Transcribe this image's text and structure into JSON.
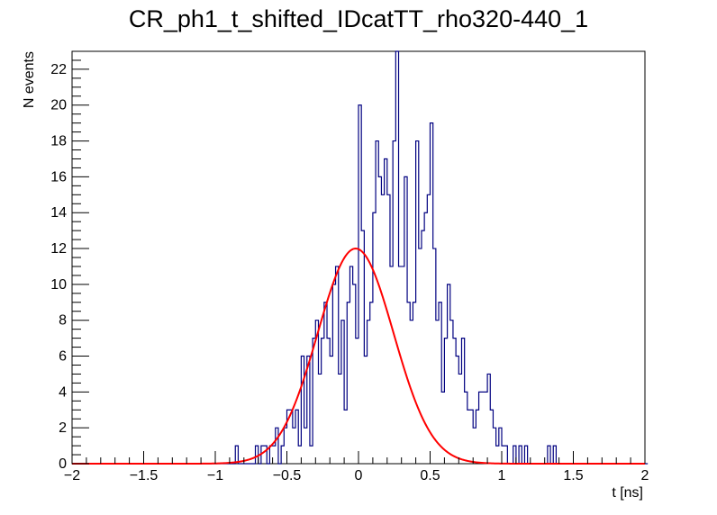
{
  "chart_data": {
    "type": "histogram",
    "title": "CR_ph1_t_shifted_IDcatTT_rho320-440_1",
    "xlabel": "t [ns]",
    "ylabel": "N events",
    "xlim": [
      -2,
      2
    ],
    "ylim": [
      0,
      23
    ],
    "x_ticks": [
      -2,
      -1.5,
      -1,
      -0.5,
      0,
      0.5,
      1,
      1.5,
      2
    ],
    "x_tick_labels": [
      "−2",
      "−1.5",
      "−1",
      "−0.5",
      "0",
      "0.5",
      "1",
      "1.5",
      "2"
    ],
    "y_ticks": [
      0,
      2,
      4,
      6,
      8,
      10,
      12,
      14,
      16,
      18,
      20,
      22
    ],
    "y_tick_labels": [
      "0",
      "2",
      "4",
      "6",
      "8",
      "10",
      "12",
      "14",
      "16",
      "18",
      "20",
      "22"
    ],
    "bin_start": -2,
    "bin_width": 0.02,
    "series": [
      {
        "name": "histogram",
        "color": "#000080",
        "values": [
          0,
          0,
          0,
          0,
          0,
          0,
          0,
          0,
          0,
          0,
          0,
          0,
          0,
          0,
          0,
          0,
          0,
          0,
          0,
          0,
          0,
          0,
          0,
          0,
          0,
          0,
          0,
          0,
          0,
          0,
          0,
          0,
          0,
          0,
          0,
          0,
          0,
          0,
          0,
          0,
          0,
          0,
          0,
          0,
          0,
          0,
          0,
          0,
          0,
          0,
          0,
          0,
          0,
          0,
          0,
          0,
          0,
          1,
          0,
          0,
          0,
          0,
          0,
          0,
          1,
          0,
          1,
          1,
          0,
          1,
          1,
          2,
          0,
          1,
          2,
          3,
          3,
          2,
          3,
          1,
          6,
          2,
          6,
          1,
          7,
          8,
          5,
          7,
          9,
          7,
          6,
          10,
          11,
          5,
          8,
          3,
          9,
          11,
          10,
          7,
          20,
          13,
          6,
          8,
          9,
          14,
          18,
          16,
          15,
          17,
          15,
          11,
          18,
          23,
          11,
          11,
          16,
          9,
          8,
          9,
          18,
          12,
          13,
          14,
          15,
          19,
          12,
          8,
          9,
          4,
          7,
          10,
          8,
          7,
          6,
          5,
          7,
          4,
          3,
          3,
          2,
          3,
          4,
          4,
          4,
          5,
          3,
          2,
          1,
          2,
          1,
          1,
          0,
          0,
          1,
          0,
          1,
          0,
          1,
          0,
          0,
          0,
          0,
          0,
          0,
          0,
          1,
          0,
          1,
          0,
          0,
          0,
          0,
          0,
          0,
          0,
          0,
          0,
          0,
          0,
          0,
          0,
          0,
          0,
          0,
          0,
          0,
          0,
          0,
          0,
          0,
          0,
          0,
          0,
          0,
          0,
          0,
          0,
          0,
          0,
          0
        ]
      },
      {
        "name": "gaussian fit",
        "type": "line",
        "color": "#ff0000",
        "amplitude": 12.0,
        "mean": -0.02,
        "sigma": 0.265,
        "baseline": 0.0
      }
    ]
  }
}
